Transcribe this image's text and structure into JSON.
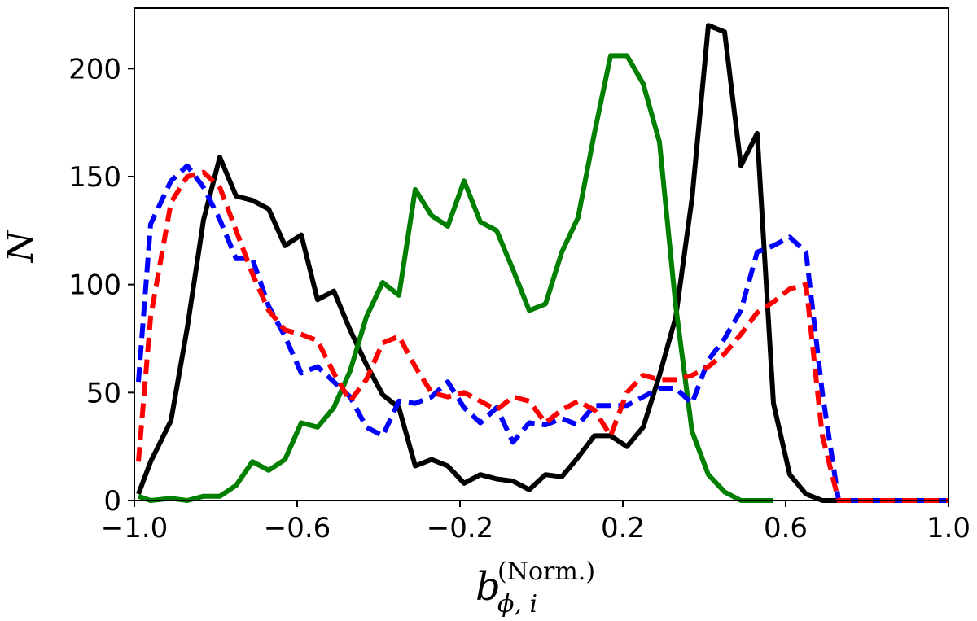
{
  "chart_data": {
    "type": "line",
    "xlabel": "b",
    "xlabel_subscript": "ϕ, i",
    "xlabel_superscript": "(Norm.)",
    "ylabel": "N",
    "xlim": [
      -1.0,
      1.0
    ],
    "ylim": [
      0,
      228
    ],
    "x_ticks": [
      -1.0,
      -0.6,
      -0.2,
      0.2,
      0.6,
      1.0
    ],
    "x_tick_labels": [
      "−1.0",
      "−0.6",
      "−0.2",
      "0.2",
      "0.6",
      "1.0"
    ],
    "y_ticks": [
      0,
      50,
      100,
      150,
      200
    ],
    "y_tick_labels": [
      "0",
      "50",
      "100",
      "150",
      "200"
    ],
    "series": [
      {
        "name": "black",
        "color": "#000000",
        "dash": "solid",
        "x": [
          -0.99,
          -0.96,
          -0.91,
          -0.87,
          -0.83,
          -0.79,
          -0.75,
          -0.71,
          -0.67,
          -0.63,
          -0.59,
          -0.55,
          -0.51,
          -0.47,
          -0.43,
          -0.39,
          -0.35,
          -0.31,
          -0.27,
          -0.23,
          -0.19,
          -0.15,
          -0.11,
          -0.07,
          -0.03,
          0.01,
          0.05,
          0.09,
          0.13,
          0.17,
          0.21,
          0.25,
          0.29,
          0.33,
          0.37,
          0.41,
          0.45,
          0.49,
          0.53,
          0.57,
          0.61,
          0.65,
          0.69,
          0.73,
          0.77,
          0.81,
          0.85,
          0.89,
          0.93,
          0.97,
          1.0
        ],
        "y": [
          3,
          18,
          37,
          80,
          130,
          159,
          141,
          139,
          135,
          118,
          123,
          93,
          97,
          79,
          63,
          49,
          43,
          16,
          19,
          16,
          8,
          12,
          10,
          9,
          5,
          12,
          11,
          20,
          30,
          30,
          25,
          34,
          58,
          85,
          140,
          220,
          217,
          155,
          170,
          45,
          12,
          3,
          0,
          0,
          0,
          0,
          0,
          0,
          0,
          0,
          0
        ]
      },
      {
        "name": "green",
        "color": "#007f00",
        "dash": "solid",
        "x": [
          -0.99,
          -0.96,
          -0.91,
          -0.87,
          -0.83,
          -0.79,
          -0.75,
          -0.71,
          -0.67,
          -0.63,
          -0.59,
          -0.55,
          -0.51,
          -0.47,
          -0.43,
          -0.39,
          -0.35,
          -0.31,
          -0.27,
          -0.23,
          -0.19,
          -0.15,
          -0.11,
          -0.07,
          -0.03,
          0.01,
          0.05,
          0.09,
          0.13,
          0.17,
          0.21,
          0.25,
          0.29,
          0.33,
          0.37,
          0.41,
          0.45,
          0.49,
          0.53,
          0.57
        ],
        "y": [
          2,
          0,
          1,
          0,
          2,
          2,
          7,
          18,
          14,
          19,
          36,
          34,
          43,
          60,
          85,
          101,
          95,
          144,
          132,
          127,
          148,
          129,
          125,
          107,
          88,
          91,
          115,
          131,
          170,
          206,
          206,
          193,
          166,
          90,
          32,
          12,
          4,
          0,
          0,
          0
        ]
      },
      {
        "name": "blue",
        "color": "#0000ff",
        "dash": "dashed",
        "x": [
          -0.99,
          -0.96,
          -0.91,
          -0.87,
          -0.83,
          -0.79,
          -0.75,
          -0.71,
          -0.67,
          -0.63,
          -0.59,
          -0.55,
          -0.51,
          -0.47,
          -0.43,
          -0.39,
          -0.35,
          -0.31,
          -0.27,
          -0.23,
          -0.19,
          -0.15,
          -0.11,
          -0.07,
          -0.03,
          0.01,
          0.05,
          0.09,
          0.13,
          0.17,
          0.21,
          0.25,
          0.29,
          0.33,
          0.37,
          0.41,
          0.45,
          0.49,
          0.53,
          0.57,
          0.61,
          0.65,
          0.69,
          0.73,
          0.77,
          0.81,
          0.85,
          0.89,
          0.93,
          0.97,
          1.0
        ],
        "y": [
          55,
          128,
          148,
          155,
          145,
          130,
          112,
          112,
          90,
          76,
          59,
          62,
          55,
          48,
          34,
          30,
          46,
          45,
          48,
          55,
          43,
          36,
          43,
          27,
          36,
          35,
          38,
          35,
          44,
          44,
          44,
          48,
          52,
          52,
          45,
          65,
          75,
          88,
          115,
          118,
          122,
          115,
          50,
          0,
          0,
          0,
          0,
          0,
          0,
          0,
          0
        ]
      },
      {
        "name": "red",
        "color": "#ff0000",
        "dash": "dashed",
        "x": [
          -0.99,
          -0.96,
          -0.91,
          -0.87,
          -0.83,
          -0.79,
          -0.75,
          -0.71,
          -0.67,
          -0.63,
          -0.59,
          -0.55,
          -0.51,
          -0.47,
          -0.43,
          -0.39,
          -0.35,
          -0.31,
          -0.27,
          -0.23,
          -0.19,
          -0.15,
          -0.11,
          -0.07,
          -0.03,
          0.01,
          0.05,
          0.09,
          0.13,
          0.17,
          0.21,
          0.25,
          0.29,
          0.33,
          0.37,
          0.41,
          0.45,
          0.49,
          0.53,
          0.57,
          0.61,
          0.65,
          0.69,
          0.73,
          0.77,
          0.81,
          0.85,
          0.89,
          0.93,
          0.97,
          1.0
        ],
        "y": [
          18,
          85,
          138,
          150,
          152,
          145,
          125,
          105,
          88,
          79,
          77,
          74,
          59,
          46,
          56,
          73,
          76,
          62,
          50,
          48,
          50,
          46,
          42,
          48,
          46,
          36,
          42,
          46,
          42,
          30,
          50,
          58,
          56,
          56,
          58,
          62,
          68,
          77,
          87,
          92,
          98,
          100,
          30,
          0,
          0,
          0,
          0,
          0,
          0,
          0,
          0
        ]
      }
    ]
  }
}
